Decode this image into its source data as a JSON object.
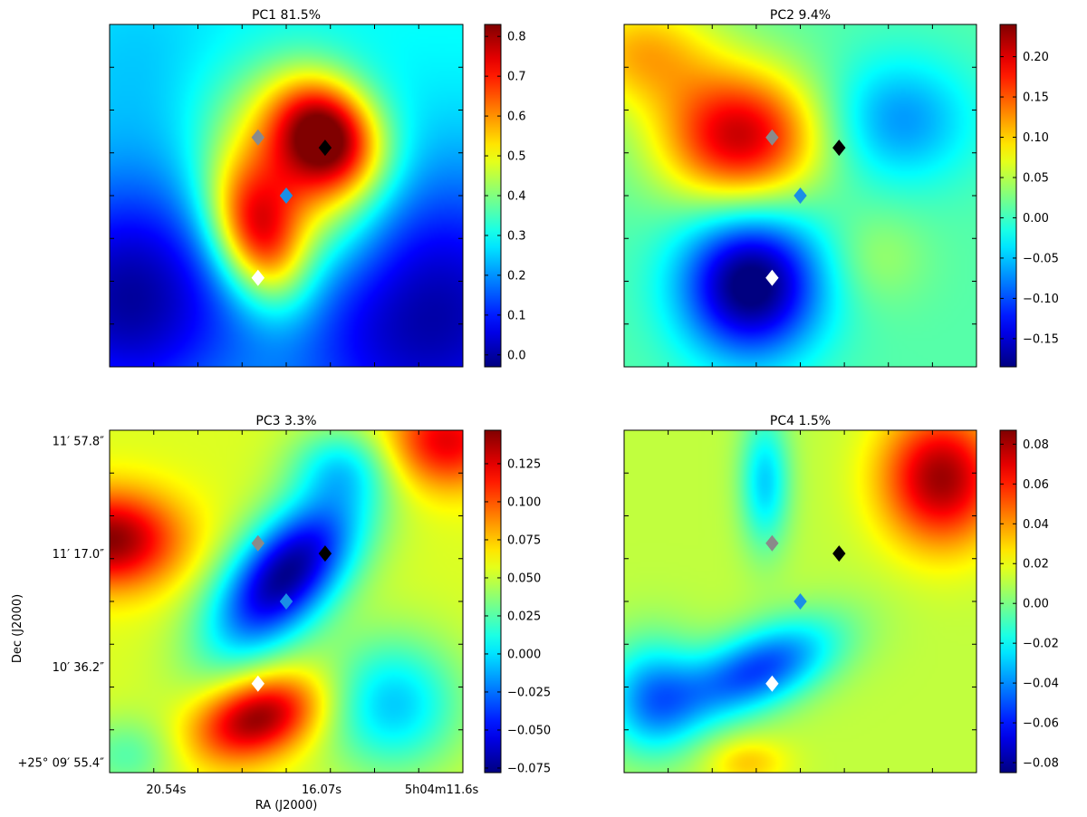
{
  "chart_data": [
    {
      "type": "heatmap",
      "title": "PC1 81.5%",
      "colorbar": {
        "ticks": [
          "0.0",
          "0.1",
          "0.2",
          "0.3",
          "0.4",
          "0.5",
          "0.6",
          "0.7",
          "0.8"
        ],
        "range": [
          -0.03,
          0.83
        ]
      },
      "field": {
        "background": 0.3,
        "blobs": [
          {
            "x": 0.62,
            "y": 0.32,
            "sx": 0.1,
            "sy": 0.13,
            "rot": -35,
            "amp": 0.52
          },
          {
            "x": 0.42,
            "y": 0.62,
            "sx": 0.09,
            "sy": 0.15,
            "rot": -20,
            "amp": 0.45
          },
          {
            "x": 0.52,
            "y": 0.45,
            "sx": 0.12,
            "sy": 0.2,
            "rot": -35,
            "amp": 0.28
          },
          {
            "x": 0.05,
            "y": 0.8,
            "sx": 0.22,
            "sy": 0.25,
            "rot": 0,
            "amp": -0.3
          },
          {
            "x": 0.9,
            "y": 0.85,
            "sx": 0.3,
            "sy": 0.3,
            "rot": 0,
            "amp": -0.3
          },
          {
            "x": 0.1,
            "y": 0.1,
            "sx": 0.2,
            "sy": 0.2,
            "rot": 0,
            "amp": -0.05
          }
        ]
      }
    },
    {
      "type": "heatmap",
      "title": "PC2 9.4%",
      "colorbar": {
        "ticks": [
          "0.20",
          "0.15",
          "0.10",
          "0.05",
          "0.00",
          "−0.05",
          "−0.10",
          "−0.15"
        ],
        "range": [
          -0.185,
          0.24
        ]
      },
      "field": {
        "background": 0.01,
        "blobs": [
          {
            "x": 0.33,
            "y": 0.33,
            "sx": 0.16,
            "sy": 0.14,
            "rot": 0,
            "amp": 0.2
          },
          {
            "x": 0.05,
            "y": 0.08,
            "sx": 0.15,
            "sy": 0.12,
            "rot": 0,
            "amp": 0.1
          },
          {
            "x": 0.36,
            "y": 0.76,
            "sx": 0.14,
            "sy": 0.15,
            "rot": 0,
            "amp": -0.21
          },
          {
            "x": 0.78,
            "y": 0.28,
            "sx": 0.15,
            "sy": 0.13,
            "rot": 0,
            "amp": -0.08
          },
          {
            "x": 0.72,
            "y": 0.68,
            "sx": 0.1,
            "sy": 0.1,
            "rot": 0,
            "amp": 0.03
          }
        ]
      }
    },
    {
      "type": "heatmap",
      "title": "PC3 3.3%",
      "xlabel": "RA (J2000)",
      "ylabel": "Dec (J2000)",
      "xticks": [
        "20.54s",
        "16.07s",
        "5h04m11.6s"
      ],
      "yticks": [
        "11′ 57.8″",
        "11′ 17.0″",
        "10′ 36.2″",
        "+25° 09′ 55.4″"
      ],
      "colorbar": {
        "ticks": [
          "0.125",
          "0.100",
          "0.075",
          "0.050",
          "0.025",
          "0.000",
          "−0.025",
          "−0.050",
          "−0.075"
        ],
        "range": [
          -0.078,
          0.147
        ]
      },
      "field": {
        "background": 0.055,
        "blobs": [
          {
            "x": 0.5,
            "y": 0.42,
            "sx": 0.1,
            "sy": 0.2,
            "rot": 40,
            "amp": -0.13
          },
          {
            "x": 0.0,
            "y": 0.32,
            "sx": 0.14,
            "sy": 0.1,
            "rot": 0,
            "amp": 0.09
          },
          {
            "x": 0.42,
            "y": 0.84,
            "sx": 0.13,
            "sy": 0.08,
            "rot": -20,
            "amp": 0.09
          },
          {
            "x": 0.95,
            "y": 0.03,
            "sx": 0.12,
            "sy": 0.1,
            "rot": 0,
            "amp": 0.07
          },
          {
            "x": 0.8,
            "y": 0.8,
            "sx": 0.14,
            "sy": 0.14,
            "rot": 0,
            "amp": -0.06
          },
          {
            "x": 0.65,
            "y": 0.1,
            "sx": 0.1,
            "sy": 0.08,
            "rot": 0,
            "amp": -0.04
          },
          {
            "x": 0.05,
            "y": 0.95,
            "sx": 0.1,
            "sy": 0.08,
            "rot": 0,
            "amp": -0.03
          }
        ]
      }
    },
    {
      "type": "heatmap",
      "title": "PC4 1.5%",
      "colorbar": {
        "ticks": [
          "0.08",
          "0.06",
          "0.04",
          "0.02",
          "0.00",
          "−0.02",
          "−0.04",
          "−0.06",
          "−0.08"
        ],
        "range": [
          -0.085,
          0.087
        ]
      },
      "field": {
        "background": 0.012,
        "blobs": [
          {
            "x": 0.38,
            "y": 0.7,
            "sx": 0.17,
            "sy": 0.08,
            "rot": -25,
            "amp": -0.065
          },
          {
            "x": 0.08,
            "y": 0.78,
            "sx": 0.1,
            "sy": 0.12,
            "rot": 0,
            "amp": -0.05
          },
          {
            "x": 0.9,
            "y": 0.14,
            "sx": 0.12,
            "sy": 0.14,
            "rot": 0,
            "amp": 0.07
          },
          {
            "x": 0.4,
            "y": 0.15,
            "sx": 0.05,
            "sy": 0.14,
            "rot": 0,
            "amp": -0.04
          },
          {
            "x": 0.35,
            "y": 0.97,
            "sx": 0.08,
            "sy": 0.05,
            "rot": 0,
            "amp": 0.02
          }
        ]
      }
    }
  ],
  "markers": [
    {
      "name": "gray",
      "color": "#8a8a8a",
      "x": 0.42,
      "y": 0.33
    },
    {
      "name": "black",
      "color": "#000000",
      "x": 0.61,
      "y": 0.36
    },
    {
      "name": "blue",
      "color": "#1a8fe6",
      "x": 0.5,
      "y": 0.5
    },
    {
      "name": "white",
      "color": "#ffffff",
      "x": 0.42,
      "y": 0.74
    }
  ]
}
